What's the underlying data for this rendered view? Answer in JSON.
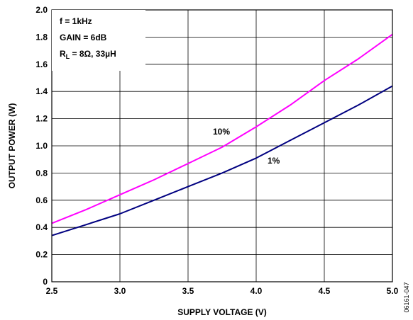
{
  "chart_data": {
    "type": "line",
    "title": "",
    "xlabel": "SUPPLY VOLTAGE (V)",
    "ylabel": "OUTPUT POWER (W)",
    "xlim": [
      2.5,
      5.0
    ],
    "ylim": [
      0,
      2.0
    ],
    "xticks": [
      "2.5",
      "3.0",
      "3.5",
      "4.0",
      "4.5",
      "5.0"
    ],
    "yticks": [
      "0",
      "0.2",
      "0.4",
      "0.6",
      "0.8",
      "1.0",
      "1.2",
      "1.4",
      "1.6",
      "1.8",
      "2.0"
    ],
    "grid": true,
    "conditions": {
      "line1": "f = 1kHz",
      "line2": "GAIN = 6dB",
      "line3_main": "R",
      "line3_sub": "L",
      "line3_rest": " = 8Ω, 33µH"
    },
    "figure_id": "06161-047",
    "series": [
      {
        "name": "10%",
        "color": "#ff00ff",
        "x": [
          2.5,
          2.75,
          3.0,
          3.25,
          3.5,
          3.75,
          4.0,
          4.25,
          4.5,
          4.75,
          5.0
        ],
        "y": [
          0.43,
          0.53,
          0.64,
          0.75,
          0.87,
          0.99,
          1.14,
          1.3,
          1.48,
          1.64,
          1.82
        ]
      },
      {
        "name": "1%",
        "color": "#000080",
        "x": [
          2.5,
          2.75,
          3.0,
          3.25,
          3.5,
          3.75,
          4.0,
          4.25,
          4.5,
          4.75,
          5.0
        ],
        "y": [
          0.34,
          0.42,
          0.5,
          0.6,
          0.7,
          0.8,
          0.91,
          1.04,
          1.17,
          1.3,
          1.44
        ]
      }
    ]
  }
}
